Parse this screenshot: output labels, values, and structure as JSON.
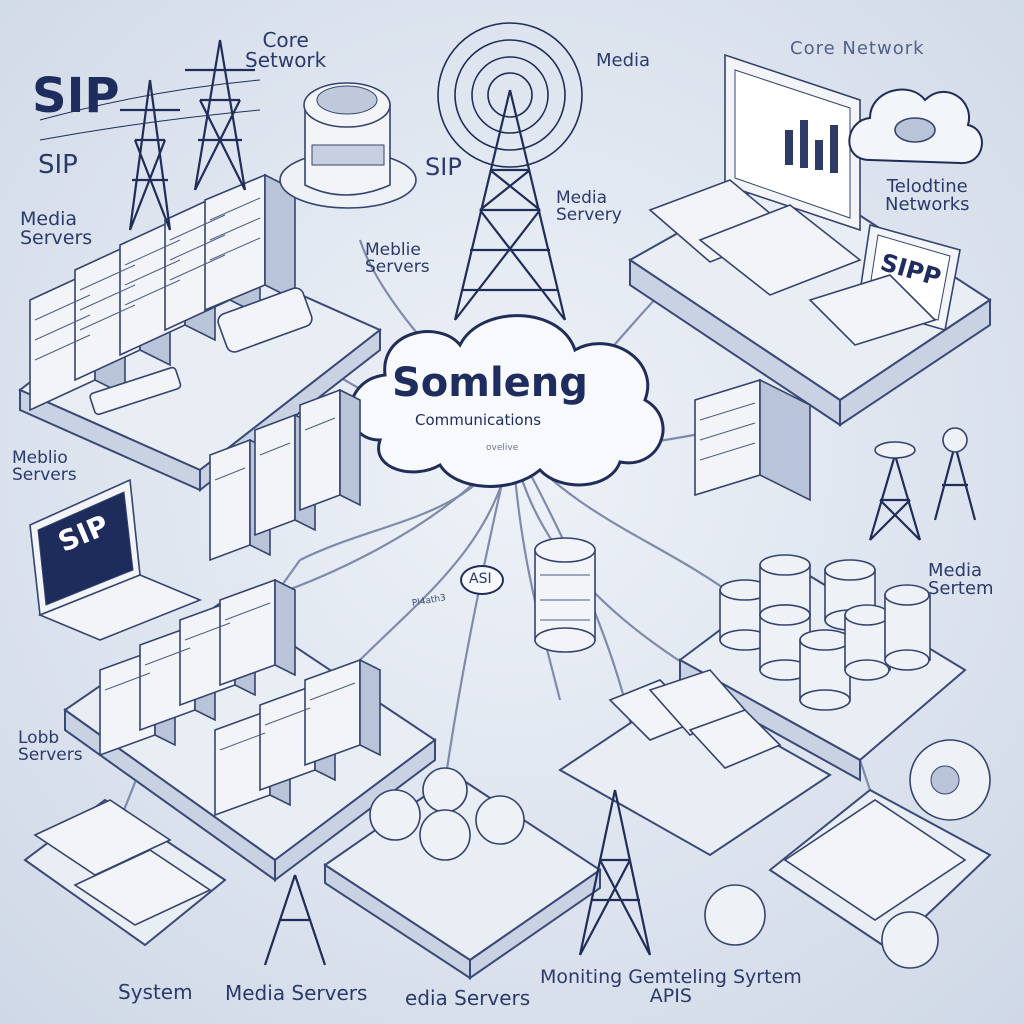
{
  "center": {
    "title": "Somleng",
    "subtitle": "Communications",
    "tag": "ovelive"
  },
  "labels": {
    "sip_topleft": "SIP",
    "sip_left": "SIP",
    "core_network_top": "Core\nSetwork",
    "media_top": "Media",
    "core_network_right": "Core Network",
    "sip_center": "SIP",
    "media_server_center": "Media\nServery",
    "meblie_servers_center": "Meblie\nServers",
    "media_servers_left": "Media\nServers",
    "telodtine_networks": "Telodtine\nNetworks",
    "meblio_servers_left": "Meblio\nServers",
    "media_sertem_right": "Media\nSertem",
    "lobb_servers": "Lobb\nServers",
    "system_bottom": "System",
    "media_servers_bottom": "Media Servers",
    "edia_servers_bottom": "edia Servers",
    "monitoring_bottom": "Moniting Gemteling Syrtem\nAPIS",
    "asi_bubble": "ASI",
    "laptop_left_screen": "SIP",
    "laptop_right_screen": "SIPP",
    "small_sign": "Pl4ath3"
  },
  "colors": {
    "ink": "#1f2d58",
    "label": "#2a3a6b",
    "background": "#dfe5ee"
  }
}
